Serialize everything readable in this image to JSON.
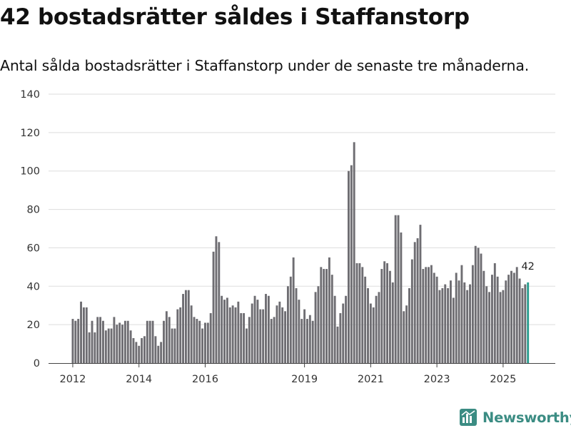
{
  "title": "42 bostadsrätter såldes i Staffanstorp",
  "subtitle": "Antal sålda bostadsrätter i Staffanstorp under de senaste tre månaderna.",
  "brand": {
    "name": "Newsworthy",
    "icon": "newsworthy-logo-icon",
    "color": "#3b8c83"
  },
  "colors": {
    "bar": "#6e6d72",
    "highlight": "#2a9d8f",
    "grid": "#dddddd",
    "axis": "#444444",
    "text": "#333333"
  },
  "chart_data": {
    "type": "bar",
    "title": "42 bostadsrätter såldes i Staffanstorp",
    "subtitle": "Antal sålda bostadsrätter i Staffanstorp under de senaste tre månaderna.",
    "xlabel": "",
    "ylabel": "",
    "ylim": [
      0,
      140
    ],
    "yticks": [
      0,
      20,
      40,
      60,
      80,
      100,
      120,
      140
    ],
    "grid": true,
    "first_year": 2012,
    "start_month": 1,
    "xtick_labels": [
      "2012",
      "2014",
      "2016",
      "2019",
      "2021",
      "2023",
      "2025"
    ],
    "values": [
      23,
      22,
      23,
      32,
      29,
      29,
      16,
      22,
      16,
      24,
      24,
      22,
      17,
      18,
      18,
      24,
      20,
      21,
      20,
      22,
      22,
      17,
      13,
      11,
      9,
      13,
      14,
      22,
      22,
      22,
      14,
      9,
      11,
      22,
      27,
      24,
      18,
      18,
      28,
      29,
      36,
      38,
      38,
      30,
      24,
      23,
      22,
      18,
      21,
      21,
      26,
      58,
      66,
      63,
      35,
      33,
      34,
      29,
      30,
      29,
      32,
      26,
      26,
      18,
      24,
      31,
      35,
      33,
      28,
      28,
      36,
      35,
      23,
      24,
      30,
      32,
      29,
      27,
      40,
      45,
      55,
      39,
      33,
      23,
      28,
      23,
      25,
      22,
      37,
      40,
      50,
      49,
      49,
      55,
      46,
      35,
      19,
      26,
      31,
      35,
      100,
      103,
      115,
      52,
      52,
      50,
      45,
      39,
      31,
      29,
      35,
      37,
      49,
      53,
      52,
      48,
      42,
      77,
      77,
      68,
      27,
      30,
      39,
      54,
      63,
      65,
      72,
      49,
      50,
      50,
      51,
      47,
      45,
      38,
      39,
      41,
      39,
      43,
      34,
      47,
      43,
      51,
      42,
      38,
      41,
      51,
      61,
      60,
      57,
      48,
      40,
      37,
      46,
      52,
      45,
      37,
      38,
      43,
      46,
      48,
      47,
      50,
      44,
      39,
      41,
      42
    ],
    "highlight_last": true,
    "last_value_label": "42"
  }
}
